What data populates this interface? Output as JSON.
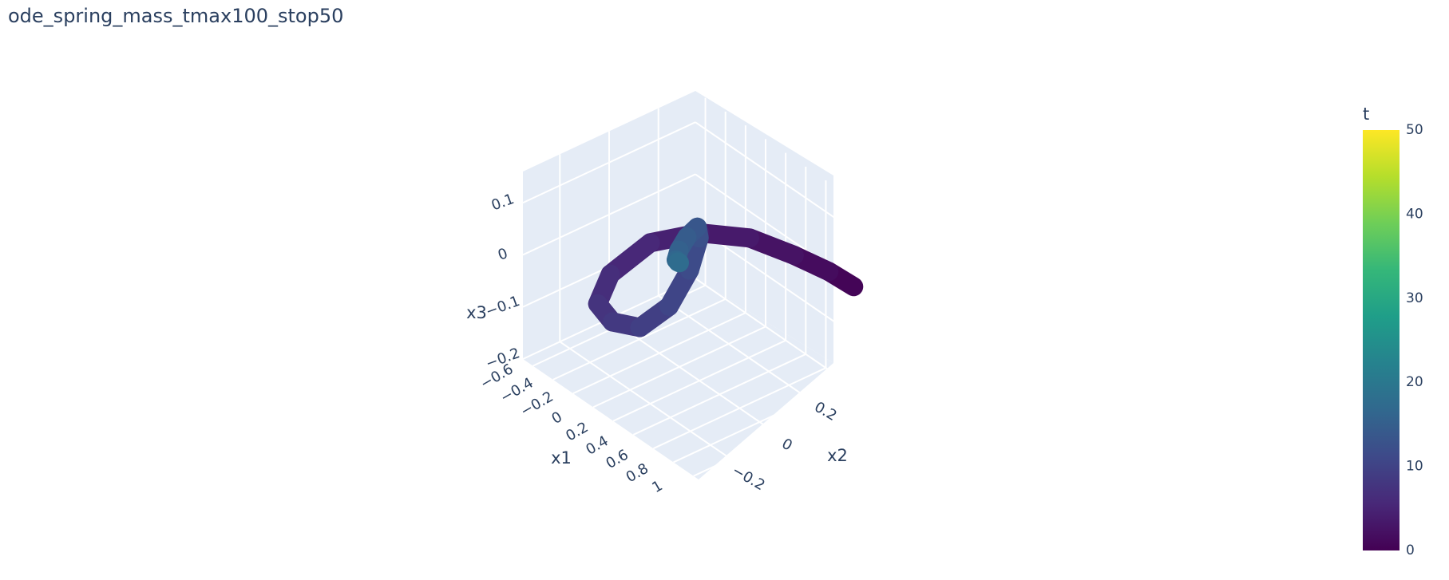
{
  "chart_data": {
    "type": "line",
    "subtype": "3d-line",
    "title": "ode_spring_mass_tmax100_stop50",
    "axes": {
      "x1": {
        "label": "x1",
        "ticks": [
          "−0.6",
          "−0.4",
          "−0.2",
          "0",
          "0.2",
          "0.4",
          "0.6",
          "0.8",
          "1"
        ],
        "range": [
          -0.7,
          1.05
        ]
      },
      "x2": {
        "label": "x2",
        "ticks": [
          "−0.2",
          "0",
          "0.2"
        ],
        "range": [
          -0.35,
          0.35
        ]
      },
      "x3": {
        "label": "x3",
        "ticks": [
          "−0.2",
          "−0.1",
          "0",
          "0.1"
        ],
        "range": [
          -0.2,
          0.16
        ]
      }
    },
    "colorbar": {
      "title": "t",
      "range": [
        0,
        50
      ],
      "ticks": [
        "0",
        "10",
        "20",
        "30",
        "40",
        "50"
      ],
      "colorscale": "Viridis"
    },
    "series": [
      {
        "color_by": "t",
        "points": [
          {
            "t": 0,
            "x1": 1.0,
            "x2": 0.3,
            "x3": 0.02
          },
          {
            "t": 1,
            "x1": 0.95,
            "x2": 0.22,
            "x3": 0.06
          },
          {
            "t": 2,
            "x1": 0.85,
            "x2": 0.12,
            "x3": 0.1
          },
          {
            "t": 3,
            "x1": 0.7,
            "x2": 0.0,
            "x3": 0.14
          },
          {
            "t": 4,
            "x1": 0.5,
            "x2": -0.12,
            "x3": 0.15
          },
          {
            "t": 5,
            "x1": 0.25,
            "x2": -0.22,
            "x3": 0.12
          },
          {
            "t": 6,
            "x1": 0.0,
            "x2": -0.28,
            "x3": 0.04
          },
          {
            "t": 7,
            "x1": -0.2,
            "x2": -0.25,
            "x3": -0.05
          },
          {
            "t": 8,
            "x1": -0.3,
            "x2": -0.15,
            "x3": -0.12
          },
          {
            "t": 9,
            "x1": -0.32,
            "x2": -0.03,
            "x3": -0.16
          },
          {
            "t": 10,
            "x1": -0.25,
            "x2": 0.06,
            "x3": -0.13
          },
          {
            "t": 11,
            "x1": -0.12,
            "x2": 0.09,
            "x3": -0.05
          },
          {
            "t": 12,
            "x1": 0.0,
            "x2": 0.08,
            "x3": 0.03
          },
          {
            "t": 13,
            "x1": 0.08,
            "x2": 0.04,
            "x3": 0.07
          },
          {
            "t": 14,
            "x1": 0.1,
            "x2": -0.01,
            "x3": 0.065
          },
          {
            "t": 15,
            "x1": 0.07,
            "x2": -0.03,
            "x3": 0.04
          },
          {
            "t": 16,
            "x1": 0.03,
            "x2": -0.025,
            "x3": 0.015
          },
          {
            "t": 17,
            "x1": 0.01,
            "x2": -0.01,
            "x3": 0.005
          },
          {
            "t": 18,
            "x1": 0.0,
            "x2": 0.0,
            "x3": 0.0
          }
        ]
      }
    ]
  }
}
